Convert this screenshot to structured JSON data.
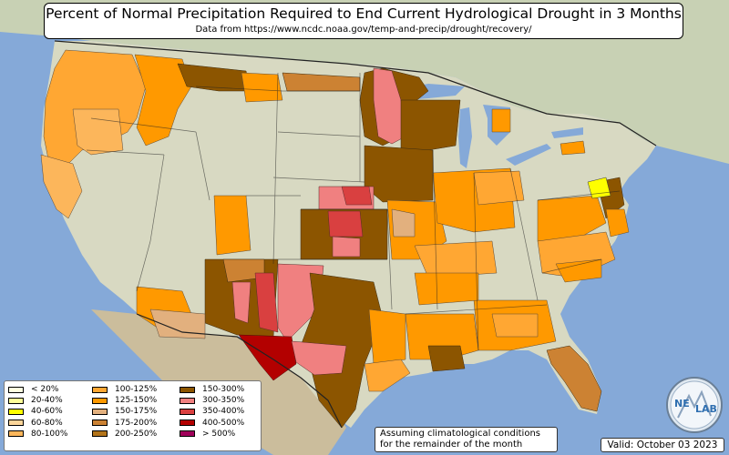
{
  "title": "Percent of Normal Precipitation Required to End Current Hydrological Drought in 3 Months",
  "subtitle": "Data from https://www.ncdc.noaa.gov/temp-and-precip/drought/recovery/",
  "legend": {
    "items": [
      {
        "label": "< 20%",
        "color": "#ffffe0"
      },
      {
        "label": "20-40%",
        "color": "#ffff99"
      },
      {
        "label": "40-60%",
        "color": "#ffff00"
      },
      {
        "label": "60-80%",
        "color": "#fcd59a"
      },
      {
        "label": "80-100%",
        "color": "#fcb65b"
      },
      {
        "label": "100-125%",
        "color": "#ffa733"
      },
      {
        "label": "125-150%",
        "color": "#ff9900"
      },
      {
        "label": "150-175%",
        "color": "#e2b07e"
      },
      {
        "label": "175-200%",
        "color": "#cc8233"
      },
      {
        "label": "200-250%",
        "color": "#b3741a"
      },
      {
        "label": "150-300%",
        "color": "#8c5500"
      },
      {
        "label": "300-350%",
        "color": "#f08080"
      },
      {
        "label": "350-400%",
        "color": "#d94040"
      },
      {
        "label": "400-500%",
        "color": "#b30000"
      },
      {
        "label": "> 500%",
        "color": "#a0005a"
      }
    ]
  },
  "footer": {
    "note_line1": "Assuming climatological conditions",
    "note_line2": "for the remainder of the month",
    "valid": "Valid: October 03 2023"
  },
  "logo": {
    "text_left": "NE",
    "text_right": "LAB"
  }
}
